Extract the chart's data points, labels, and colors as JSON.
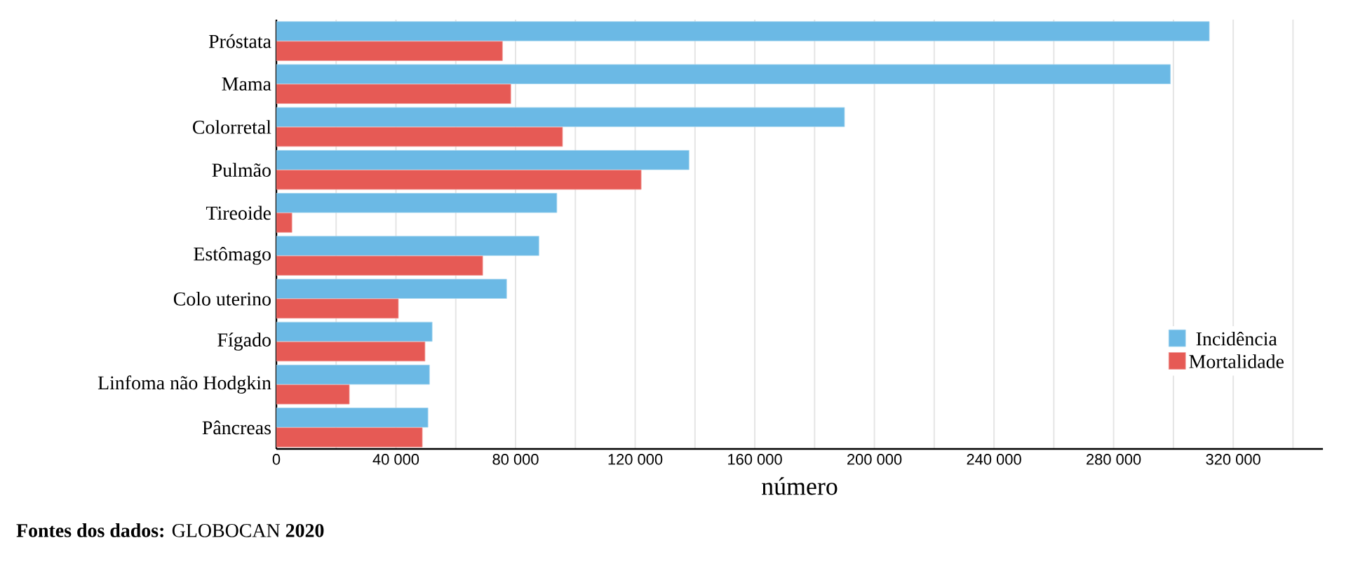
{
  "chart_data": {
    "type": "bar",
    "orientation": "horizontal",
    "categories": [
      "Próstata",
      "Mama",
      "Colorretal",
      "Pulmão",
      "Tireoide",
      "Estômago",
      "Colo uterino",
      "Fígado",
      "Linfoma não Hodgkin",
      "Pâncreas"
    ],
    "series": [
      {
        "name": "Incidência",
        "color": "#6bb9e5",
        "values": [
          312000,
          299000,
          190000,
          138000,
          93800,
          87800,
          77000,
          52100,
          51200,
          50700
        ]
      },
      {
        "name": "Mortalidade",
        "color": "#e65a55",
        "values": [
          75600,
          78400,
          95700,
          122000,
          5200,
          69000,
          40800,
          49700,
          24400,
          48800
        ]
      }
    ],
    "xlim": [
      0,
      350000
    ],
    "xticks": [
      {
        "value": 0,
        "label": "0"
      },
      {
        "value": 20000,
        "label": null
      },
      {
        "value": 40000,
        "label": "40 000"
      },
      {
        "value": 60000,
        "label": null
      },
      {
        "value": 80000,
        "label": "80 000"
      },
      {
        "value": 100000,
        "label": null
      },
      {
        "value": 120000,
        "label": "120 000"
      },
      {
        "value": 140000,
        "label": null
      },
      {
        "value": 160000,
        "label": "160 000"
      },
      {
        "value": 180000,
        "label": null
      },
      {
        "value": 200000,
        "label": "200 000"
      },
      {
        "value": 220000,
        "label": null
      },
      {
        "value": 240000,
        "label": "240 000"
      },
      {
        "value": 260000,
        "label": null
      },
      {
        "value": 280000,
        "label": "280 000"
      },
      {
        "value": 300000,
        "label": null
      },
      {
        "value": 320000,
        "label": "320 000"
      },
      {
        "value": 340000,
        "label": null
      }
    ],
    "xlabel": "número",
    "grid": "x",
    "legend": "bottom right",
    "annotations": [
      "**Fontes dos dados:** GLOBOCAN **2020**"
    ]
  }
}
